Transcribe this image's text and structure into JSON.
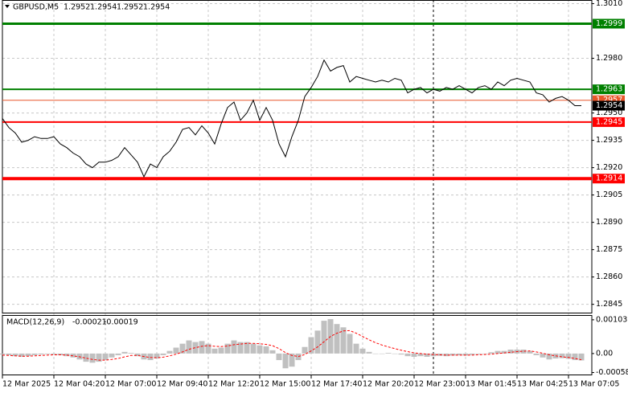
{
  "chart_data": [
    {
      "type": "line",
      "title": "GBPUSD,M5",
      "ohlc": [
        1.2952,
        1.2954,
        1.2952,
        1.2954
      ],
      "color": "#000000",
      "values": [
        1.2947,
        1.2942,
        1.2939,
        1.2934,
        1.2935,
        1.2937,
        1.2936,
        1.2936,
        1.2937,
        1.2933,
        1.2931,
        1.2928,
        1.2926,
        1.2922,
        1.292,
        1.2923,
        1.2923,
        1.2924,
        1.2926,
        1.2931,
        1.2927,
        1.2923,
        1.2915,
        1.2922,
        1.292,
        1.2926,
        1.2929,
        1.2934,
        1.2941,
        1.2942,
        1.2938,
        1.2943,
        1.2939,
        1.2933,
        1.2944,
        1.2953,
        1.2956,
        1.2946,
        1.295,
        1.2957,
        1.2946,
        1.2953,
        1.2946,
        1.2933,
        1.2926,
        1.2937,
        1.2946,
        1.2959,
        1.2964,
        1.297,
        1.2979,
        1.2973,
        1.2975,
        1.2976,
        1.2967,
        1.297,
        1.2969,
        1.2968,
        1.2967,
        1.2968,
        1.2967,
        1.2969,
        1.2968,
        1.2961,
        1.2963,
        1.2964,
        1.2961,
        1.2963,
        1.2962,
        1.2964,
        1.2963,
        1.2965,
        1.2963,
        1.2961,
        1.2964,
        1.2965,
        1.2963,
        1.2967,
        1.2965,
        1.2968,
        1.2969,
        1.2968,
        1.2967,
        1.2961,
        1.296,
        1.2956,
        1.2958,
        1.2959,
        1.2957,
        1.2954,
        1.2954
      ],
      "levels": [
        {
          "value": 1.2999,
          "color": "#008000",
          "width": 3
        },
        {
          "value": 1.2963,
          "color": "#008000",
          "width": 2
        },
        {
          "value": 1.2957,
          "color": "#e8572a",
          "width": 1
        },
        {
          "value": 1.2945,
          "color": "#ff0000",
          "width": 2
        },
        {
          "value": 1.2914,
          "color": "#ff0000",
          "width": 4
        }
      ],
      "current": {
        "value": 1.2954,
        "color": "#000000"
      },
      "xlim": [
        0,
        90
      ],
      "ylim": [
        1.284,
        1.3012
      ],
      "yticks": [
        {
          "value": 1.301,
          "label": "1.3010"
        },
        {
          "value": 1.298,
          "label": "1.2980"
        },
        {
          "value": 1.295,
          "label": "1.2950"
        },
        1.2935,
        {
          "value": 1.292,
          "label": "1.2920"
        },
        1.2905,
        {
          "value": 1.289,
          "label": "1.2890"
        },
        1.2875,
        {
          "value": 1.286,
          "label": "1.2860"
        },
        1.2845
      ],
      "xticks": [
        {
          "value": 0,
          "label": "12 Mar 2025"
        },
        {
          "value": 8,
          "label": "12 Mar 04:20"
        },
        {
          "value": 16,
          "label": "12 Mar 07:00"
        },
        {
          "value": 24,
          "label": "12 Mar 09:40"
        },
        {
          "value": 32,
          "label": "12 Mar 12:20"
        },
        {
          "value": 40,
          "label": "12 Mar 15:00"
        },
        {
          "value": 48,
          "label": "12 Mar 17:40"
        },
        {
          "value": 56,
          "label": "12 Mar 20:20"
        },
        {
          "value": 64,
          "label": "12 Mar 23:00"
        },
        {
          "value": 72,
          "label": "13 Mar 01:45"
        },
        {
          "value": 80,
          "label": "13 Mar 04:25"
        },
        {
          "value": 88,
          "label": "13 Mar 07:05"
        }
      ],
      "grid": true
    },
    {
      "type": "macd",
      "title": "MACD(12,26,9)",
      "main_value": -0.00021,
      "signal_value": -0.00019,
      "histogram": {
        "color": "#c0c0c0",
        "values": [
          -3e-05,
          -5e-05,
          -8e-05,
          -0.0001,
          -8e-05,
          -5e-05,
          -3e-05,
          -2e-05,
          -3e-05,
          -5e-05,
          -8e-05,
          -0.00012,
          -0.00018,
          -0.00025,
          -0.00028,
          -0.00025,
          -0.0002,
          -0.00012,
          -5e-05,
          5e-05,
          2e-05,
          -8e-05,
          -0.00018,
          -0.0002,
          -0.00015,
          -5e-05,
          8e-05,
          0.00018,
          0.0003,
          0.0004,
          0.00035,
          0.00038,
          0.0003,
          0.00015,
          0.00018,
          0.0003,
          0.0004,
          0.00035,
          0.00035,
          0.0003,
          0.00025,
          0.00022,
          0.0001,
          -0.0002,
          -0.00045,
          -0.0004,
          -0.0002,
          0.0002,
          0.0005,
          0.0007,
          0.001,
          0.00105,
          0.0009,
          0.0008,
          0.0006,
          0.0003,
          0.00015,
          5e-05,
          0,
          0,
          2e-05,
          0,
          -3e-05,
          -8e-05,
          -0.0001,
          -8e-05,
          -0.0001,
          -8e-05,
          -7e-05,
          -8e-05,
          -6e-05,
          -5e-05,
          -6e-05,
          -4e-05,
          -2e-05,
          0,
          4e-05,
          8e-05,
          8e-05,
          0.00012,
          0.00012,
          0.00012,
          8e-05,
          -5e-05,
          -0.00012,
          -0.00018,
          -0.00015,
          -0.00014,
          -0.00016,
          -0.0002,
          -0.00021
        ]
      },
      "signal": {
        "color": "#ff0000",
        "values": [
          -5e-05,
          -6e-05,
          -7e-05,
          -8e-05,
          -8e-05,
          -7e-05,
          -6e-05,
          -5e-05,
          -4e-05,
          -4e-05,
          -5e-05,
          -7e-05,
          -0.0001,
          -0.00014,
          -0.00018,
          -0.0002,
          -0.0002,
          -0.00018,
          -0.00015,
          -0.0001,
          -6e-05,
          -6e-05,
          -9e-05,
          -0.00012,
          -0.00013,
          -0.00011,
          -7e-05,
          -2e-05,
          5e-05,
          0.00013,
          0.00018,
          0.00022,
          0.00024,
          0.00022,
          0.00021,
          0.00023,
          0.00027,
          0.00029,
          0.00031,
          0.00031,
          0.0003,
          0.00028,
          0.00024,
          0.00015,
          3e-05,
          -6e-05,
          -9e-05,
          -3e-05,
          8e-05,
          0.0002,
          0.00036,
          0.00052,
          0.00062,
          0.00069,
          0.0007,
          0.00062,
          0.00052,
          0.00042,
          0.00033,
          0.00026,
          0.0002,
          0.00015,
          0.0001,
          6e-05,
          2e-05,
          0,
          -2e-05,
          -3e-05,
          -4e-05,
          -5e-05,
          -5e-05,
          -5e-05,
          -5e-05,
          -5e-05,
          -4e-05,
          -3e-05,
          -2e-05,
          0,
          2e-05,
          4e-05,
          6e-05,
          7e-05,
          8e-05,
          5e-05,
          1e-05,
          -4e-05,
          -7e-05,
          -0.0001,
          -0.00012,
          -0.00015,
          -0.00019
        ]
      },
      "ylim": [
        -0.00064,
        0.00115
      ],
      "yticks": [
        0.00103,
        {
          "value": 0,
          "label": "0.00"
        },
        -0.00058
      ]
    }
  ]
}
